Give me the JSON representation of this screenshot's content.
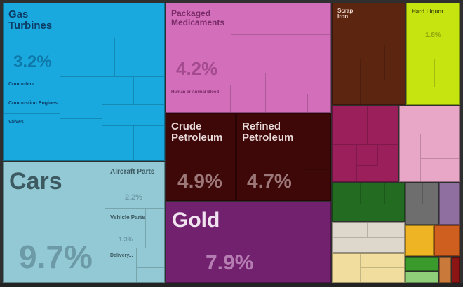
{
  "chart_data": {
    "type": "treemap",
    "tiles": [
      {
        "name": "Gas\nTurbines",
        "value": 3.2,
        "pct_label": "3.2%",
        "color": "#1aa9df",
        "sublabels": [
          "Computers",
          "Combustion Engines",
          "Valves"
        ]
      },
      {
        "name": "Cars",
        "value": 9.7,
        "pct_label": "9.7%",
        "color": "#93c9d4",
        "sublabels": [
          "Aircraft Parts",
          "Vehicle Parts",
          "Delivery..."
        ],
        "subvalues": [
          "2.2%",
          "1.3%"
        ]
      },
      {
        "name": "Packaged\nMedicaments",
        "value": 4.2,
        "pct_label": "4.2%",
        "color": "#d36fba",
        "sublabels": [
          "Human or Animal Blood"
        ]
      },
      {
        "name": "Crude\nPetroleum",
        "value": 4.9,
        "pct_label": "4.9%",
        "color": "#3e0708"
      },
      {
        "name": "Refined\nPetroleum",
        "value": 4.7,
        "pct_label": "4.7%",
        "color": "#3e0708"
      },
      {
        "name": "Gold",
        "value": 7.9,
        "pct_label": "7.9%",
        "color": "#72216f"
      },
      {
        "name": "Scrap\nIron",
        "value": null,
        "pct_label": "",
        "color": "#5c2510"
      },
      {
        "name": "Hard Liquor",
        "value": 1.8,
        "pct_label": "1.8%",
        "color": "#c6e510"
      }
    ],
    "other_groups_colors": [
      "#9b1f5b",
      "#e8a7c6",
      "#236b21",
      "#ddd8cb",
      "#6e6e6e",
      "#8f6ea0",
      "#f1dd9d",
      "#efb423",
      "#cf5f1f",
      "#3a9b2c",
      "#8b1414"
    ]
  }
}
